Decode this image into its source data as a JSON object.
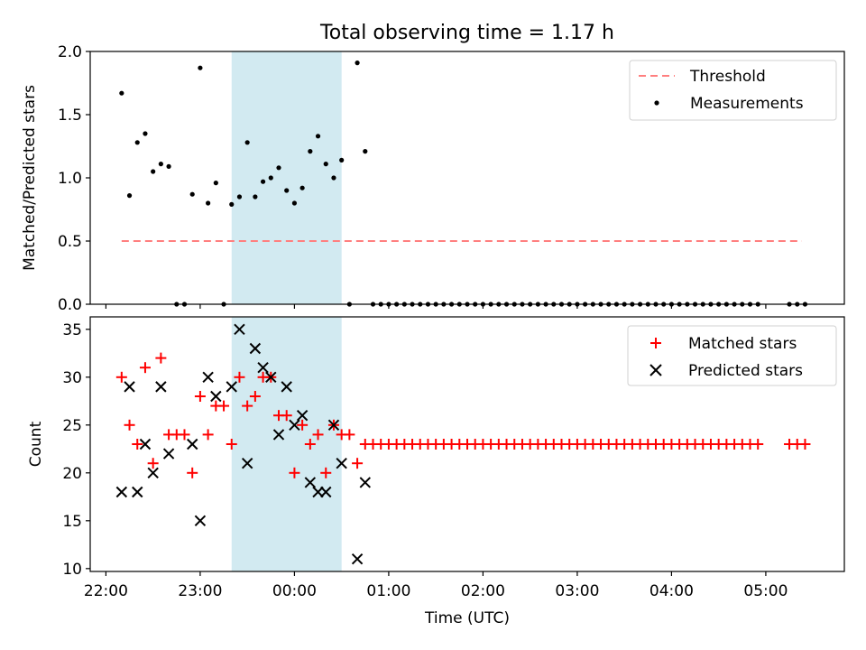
{
  "figure_title": "Total observing time = 1.17 h",
  "chart_data": [
    {
      "type": "scatter",
      "panel": "top",
      "ylabel": "Matched/Predicted stars",
      "xlabel": "",
      "xlim": [
        "21:50",
        "05:50"
      ],
      "ylim": [
        0,
        2.0
      ],
      "yticks": [
        0.0,
        0.5,
        1.0,
        1.5,
        2.0
      ],
      "ytick_labels": [
        "0.0",
        "0.5",
        "1.0",
        "1.5",
        "2.0"
      ],
      "xticks": [
        "22:00",
        "23:00",
        "00:00",
        "01:00",
        "02:00",
        "03:00",
        "04:00",
        "05:00"
      ],
      "grid": false,
      "legend_position": "top-right",
      "shaded_interval": {
        "start": "23:20",
        "end": "00:30",
        "color": "#add8e6"
      },
      "series": [
        {
          "name": "Threshold",
          "kind": "line",
          "style": "dashed",
          "color": "#ff7f7f",
          "x": [
            "22:10",
            "05:23"
          ],
          "y": [
            0.5,
            0.5
          ]
        },
        {
          "name": "Measurements",
          "kind": "scatter",
          "color": "#000000",
          "x": [
            "22:10",
            "22:15",
            "22:20",
            "22:25",
            "22:30",
            "22:35",
            "22:40",
            "22:45",
            "22:50",
            "22:55",
            "23:00",
            "23:05",
            "23:10",
            "23:15",
            "23:20",
            "23:25",
            "23:30",
            "23:35",
            "23:40",
            "23:45",
            "23:50",
            "23:55",
            "00:00",
            "00:05",
            "00:10",
            "00:15",
            "00:20",
            "00:25",
            "00:30",
            "00:35",
            "00:40",
            "00:45",
            "00:50",
            "00:55",
            "01:00",
            "01:05",
            "01:10",
            "01:15",
            "01:20",
            "01:25",
            "01:30",
            "01:35",
            "01:40",
            "01:45",
            "01:50",
            "01:55",
            "02:00",
            "02:05",
            "02:10",
            "02:15",
            "02:20",
            "02:25",
            "02:30",
            "02:35",
            "02:40",
            "02:45",
            "02:50",
            "02:55",
            "03:00",
            "03:05",
            "03:10",
            "03:15",
            "03:20",
            "03:25",
            "03:30",
            "03:35",
            "03:40",
            "03:45",
            "03:50",
            "03:55",
            "04:00",
            "04:05",
            "04:10",
            "04:15",
            "04:20",
            "04:25",
            "04:30",
            "04:35",
            "04:40",
            "04:45",
            "04:50",
            "04:55",
            "05:15",
            "05:20",
            "05:25"
          ],
          "y": [
            1.67,
            0.86,
            1.28,
            1.35,
            1.05,
            1.11,
            1.09,
            0.0,
            0.0,
            0.87,
            1.87,
            0.8,
            0.96,
            0.0,
            0.79,
            0.85,
            1.28,
            0.85,
            0.97,
            1.0,
            1.08,
            0.9,
            0.8,
            0.92,
            1.21,
            1.33,
            1.11,
            1.0,
            1.14,
            0.0,
            1.91,
            1.21,
            0.0,
            0.0,
            0.0,
            0.0,
            0.0,
            0.0,
            0.0,
            0.0,
            0.0,
            0.0,
            0.0,
            0.0,
            0.0,
            0.0,
            0.0,
            0.0,
            0.0,
            0.0,
            0.0,
            0.0,
            0.0,
            0.0,
            0.0,
            0.0,
            0.0,
            0.0,
            0.0,
            0.0,
            0.0,
            0.0,
            0.0,
            0.0,
            0.0,
            0.0,
            0.0,
            0.0,
            0.0,
            0.0,
            0.0,
            0.0,
            0.0,
            0.0,
            0.0,
            0.0,
            0.0,
            0.0,
            0.0,
            0.0,
            0.0,
            0.0,
            0.0,
            0.0,
            0.0
          ]
        }
      ]
    },
    {
      "type": "scatter",
      "panel": "bottom",
      "ylabel": "Count",
      "xlabel": "Time (UTC)",
      "xlim": [
        "21:50",
        "05:50"
      ],
      "ylim": [
        9.7,
        36.3
      ],
      "yticks": [
        10,
        15,
        20,
        25,
        30,
        35
      ],
      "ytick_labels": [
        "10",
        "15",
        "20",
        "25",
        "30",
        "35"
      ],
      "xticks": [
        "22:00",
        "23:00",
        "00:00",
        "01:00",
        "02:00",
        "03:00",
        "04:00",
        "05:00"
      ],
      "grid": false,
      "legend_position": "top-right",
      "shaded_interval": {
        "start": "23:20",
        "end": "00:30",
        "color": "#add8e6"
      },
      "series": [
        {
          "name": "Matched stars",
          "kind": "scatter",
          "marker": "+",
          "color": "#ff0000",
          "x": [
            "22:10",
            "22:15",
            "22:20",
            "22:25",
            "22:30",
            "22:35",
            "22:40",
            "22:45",
            "22:50",
            "22:55",
            "23:00",
            "23:05",
            "23:10",
            "23:15",
            "23:20",
            "23:25",
            "23:30",
            "23:35",
            "23:40",
            "23:45",
            "23:50",
            "23:55",
            "00:00",
            "00:05",
            "00:10",
            "00:15",
            "00:20",
            "00:25",
            "00:30",
            "00:35",
            "00:40",
            "00:45",
            "00:50",
            "00:55",
            "01:00",
            "01:05",
            "01:10",
            "01:15",
            "01:20",
            "01:25",
            "01:30",
            "01:35",
            "01:40",
            "01:45",
            "01:50",
            "01:55",
            "02:00",
            "02:05",
            "02:10",
            "02:15",
            "02:20",
            "02:25",
            "02:30",
            "02:35",
            "02:40",
            "02:45",
            "02:50",
            "02:55",
            "03:00",
            "03:05",
            "03:10",
            "03:15",
            "03:20",
            "03:25",
            "03:30",
            "03:35",
            "03:40",
            "03:45",
            "03:50",
            "03:55",
            "04:00",
            "04:05",
            "04:10",
            "04:15",
            "04:20",
            "04:25",
            "04:30",
            "04:35",
            "04:40",
            "04:45",
            "04:50",
            "04:55",
            "05:15",
            "05:20",
            "05:25"
          ],
          "y": [
            30,
            25,
            23,
            31,
            21,
            32,
            24,
            24,
            24,
            20,
            28,
            24,
            27,
            27,
            23,
            30,
            27,
            28,
            30,
            30,
            26,
            26,
            20,
            25,
            23,
            24,
            20,
            25,
            24,
            24,
            21,
            23,
            23,
            23,
            23,
            23,
            23,
            23,
            23,
            23,
            23,
            23,
            23,
            23,
            23,
            23,
            23,
            23,
            23,
            23,
            23,
            23,
            23,
            23,
            23,
            23,
            23,
            23,
            23,
            23,
            23,
            23,
            23,
            23,
            23,
            23,
            23,
            23,
            23,
            23,
            23,
            23,
            23,
            23,
            23,
            23,
            23,
            23,
            23,
            23,
            23,
            23,
            23,
            23,
            23
          ]
        },
        {
          "name": "Predicted stars",
          "kind": "scatter",
          "marker": "x",
          "color": "#000000",
          "x": [
            "22:10",
            "22:15",
            "22:20",
            "22:25",
            "22:30",
            "22:35",
            "22:40",
            "22:55",
            "23:00",
            "23:05",
            "23:10",
            "23:20",
            "23:25",
            "23:30",
            "23:35",
            "23:40",
            "23:45",
            "23:50",
            "23:55",
            "00:00",
            "00:05",
            "00:10",
            "00:15",
            "00:20",
            "00:25",
            "00:30",
            "00:40",
            "00:45"
          ],
          "y": [
            18,
            29,
            18,
            23,
            20,
            29,
            22,
            23,
            15,
            30,
            28,
            29,
            35,
            21,
            33,
            31,
            30,
            24,
            29,
            25,
            26,
            19,
            18,
            18,
            25,
            21,
            11,
            19
          ]
        }
      ]
    }
  ]
}
